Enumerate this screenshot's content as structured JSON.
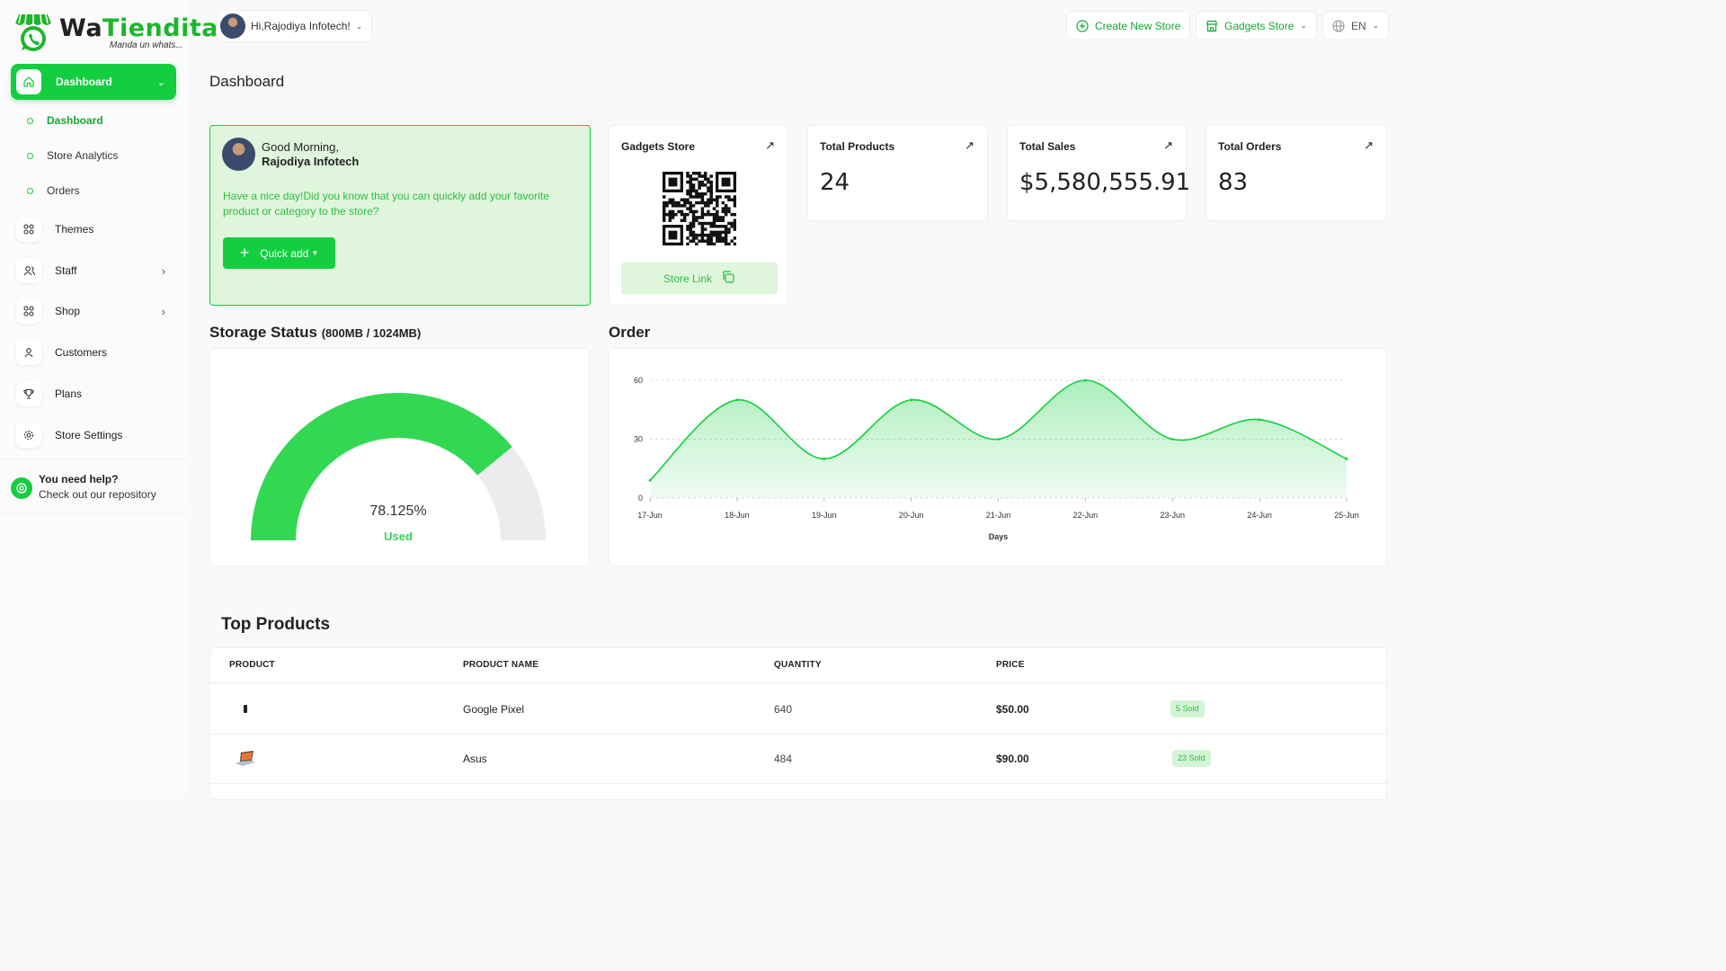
{
  "brand": {
    "name_dark": "Wa",
    "name_green": "Tiendita",
    "tagline": "Manda un whats..."
  },
  "sidebar": {
    "active": {
      "label": "Dashboard"
    },
    "sub_items": [
      {
        "label": "Dashboard",
        "active": true
      },
      {
        "label": "Store Analytics",
        "active": false
      },
      {
        "label": "Orders",
        "active": false
      }
    ],
    "items": [
      {
        "label": "Themes",
        "icon": "grid-icon",
        "expandable": false
      },
      {
        "label": "Staff",
        "icon": "users-icon",
        "expandable": true
      },
      {
        "label": "Shop",
        "icon": "grid-icon",
        "expandable": true
      },
      {
        "label": "Customers",
        "icon": "user-icon",
        "expandable": false
      },
      {
        "label": "Plans",
        "icon": "trophy-icon",
        "expandable": false
      },
      {
        "label": "Store Settings",
        "icon": "gear-icon",
        "expandable": false
      }
    ],
    "help": {
      "title": "You need help?",
      "subtitle": "Check out our repository"
    }
  },
  "header": {
    "user_greeting": "Hi,Rajodiya Infotech!",
    "create_store": "Create New Store",
    "store_select": "Gadgets Store",
    "language": "EN"
  },
  "page_title": "Dashboard",
  "greeting": {
    "line1": "Good Morning,",
    "line2": "Rajodiya Infotech",
    "message": "Have a nice day!Did you know that you can quickly add your favorite product or category to the store?",
    "quick_add": "Quick add"
  },
  "store_card": {
    "title": "Gadgets Store",
    "link_label": "Store Link"
  },
  "stats": [
    {
      "title": "Total Products",
      "value": "24"
    },
    {
      "title": "Total Sales",
      "value": "$5,580,555.91"
    },
    {
      "title": "Total Orders",
      "value": "83"
    }
  ],
  "storage": {
    "title": "Storage Status",
    "detail": "(800MB / 1024MB)",
    "percent_label": "78.125%",
    "used_label": "Used",
    "used_fraction": 0.78125,
    "used_color": "#33d852",
    "free_color": "#ececec"
  },
  "order_section": {
    "title": "Order"
  },
  "chart_data": {
    "type": "area",
    "title": "",
    "xlabel": "Days",
    "ylabel": "",
    "x": [
      "17-Jun",
      "18-Jun",
      "19-Jun",
      "20-Jun",
      "21-Jun",
      "22-Jun",
      "23-Jun",
      "24-Jun",
      "25-Jun"
    ],
    "series": [
      {
        "values": [
          9,
          50,
          20,
          50,
          30,
          60,
          30,
          40,
          20
        ]
      }
    ],
    "ylim": [
      0,
      60
    ],
    "yticks": [
      0,
      30,
      60
    ],
    "grid": true,
    "color": "#13cf3f"
  },
  "top_products": {
    "title": "Top Products",
    "columns": [
      "PRODUCT",
      "PRODUCT NAME",
      "QUANTITY",
      "PRICE"
    ],
    "rows": [
      {
        "name": "Google Pixel",
        "quantity": "640",
        "price": "$50.00",
        "sold": "5 Sold",
        "thumb": "phone-icon"
      },
      {
        "name": "Asus",
        "quantity": "484",
        "price": "$90.00",
        "sold": "23 Sold",
        "thumb": "laptop-icon"
      }
    ]
  }
}
